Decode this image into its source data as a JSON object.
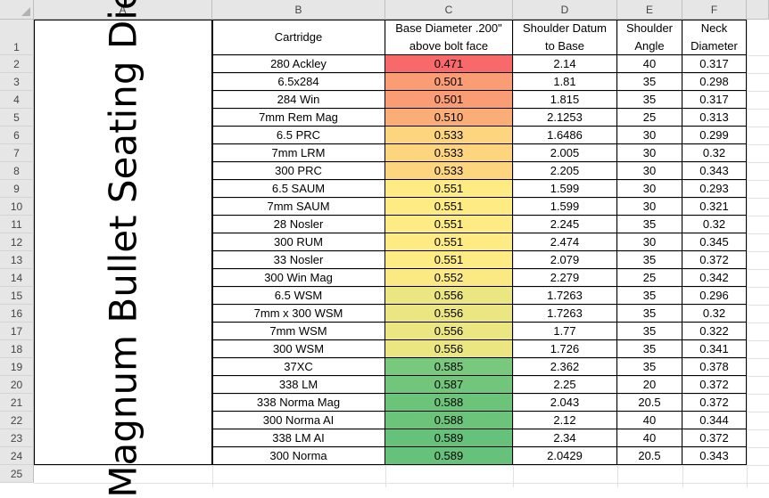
{
  "title": "Magnum Bullet Seating Die",
  "columns": [
    "A",
    "B",
    "C",
    "D",
    "E",
    "F"
  ],
  "row_numbers": [
    "1",
    "2",
    "3",
    "4",
    "5",
    "6",
    "7",
    "8",
    "9",
    "10",
    "11",
    "12",
    "13",
    "14",
    "15",
    "16",
    "17",
    "18",
    "19",
    "20",
    "21",
    "22",
    "23",
    "24",
    "25"
  ],
  "headers": {
    "cartridge": "Cartridge",
    "base_diameter": [
      "Base Diameter .200\"",
      "above bolt face"
    ],
    "shoulder_datum": [
      "Shoulder Datum",
      "to Base"
    ],
    "shoulder_angle": [
      "Shoulder",
      "Angle"
    ],
    "neck_diameter": [
      "Neck",
      "Diameter"
    ]
  },
  "rows": [
    {
      "cartridge": "280 Ackley",
      "base": "0.471",
      "datum": "2.14",
      "angle": "40",
      "neck": "0.317",
      "color": "#f8696b"
    },
    {
      "cartridge": "6.5x284",
      "base": "0.501",
      "datum": "1.81",
      "angle": "35",
      "neck": "0.298",
      "color": "#fa9d75"
    },
    {
      "cartridge": "284 Win",
      "base": "0.501",
      "datum": "1.815",
      "angle": "35",
      "neck": "0.317",
      "color": "#fa9d75"
    },
    {
      "cartridge": "7mm Rem Mag",
      "base": "0.510",
      "datum": "2.1253",
      "angle": "25",
      "neck": "0.313",
      "color": "#fbad78"
    },
    {
      "cartridge": "6.5 PRC",
      "base": "0.533",
      "datum": "1.6486",
      "angle": "30",
      "neck": "0.299",
      "color": "#fdd57f"
    },
    {
      "cartridge": "7mm LRM",
      "base": "0.533",
      "datum": "2.005",
      "angle": "30",
      "neck": "0.32",
      "color": "#fdd57f"
    },
    {
      "cartridge": "300 PRC",
      "base": "0.533",
      "datum": "2.205",
      "angle": "30",
      "neck": "0.343",
      "color": "#fdd57f"
    },
    {
      "cartridge": "6.5 SAUM",
      "base": "0.551",
      "datum": "1.599",
      "angle": "30",
      "neck": "0.293",
      "color": "#ffeb84"
    },
    {
      "cartridge": "7mm SAUM",
      "base": "0.551",
      "datum": "1.599",
      "angle": "30",
      "neck": "0.321",
      "color": "#ffeb84"
    },
    {
      "cartridge": "28 Nosler",
      "base": "0.551",
      "datum": "2.245",
      "angle": "35",
      "neck": "0.32",
      "color": "#ffeb84"
    },
    {
      "cartridge": "300 RUM",
      "base": "0.551",
      "datum": "2.474",
      "angle": "30",
      "neck": "0.345",
      "color": "#ffeb84"
    },
    {
      "cartridge": "33 Nosler",
      "base": "0.551",
      "datum": "2.079",
      "angle": "35",
      "neck": "0.372",
      "color": "#ffeb84"
    },
    {
      "cartridge": "300 Win Mag",
      "base": "0.552",
      "datum": "2.279",
      "angle": "25",
      "neck": "0.342",
      "color": "#fbea84"
    },
    {
      "cartridge": "6.5 WSM",
      "base": "0.556",
      "datum": "1.7263",
      "angle": "35",
      "neck": "0.296",
      "color": "#ebe582"
    },
    {
      "cartridge": "7mm x 300 WSM",
      "base": "0.556",
      "datum": "1.7263",
      "angle": "35",
      "neck": "0.32",
      "color": "#ebe582"
    },
    {
      "cartridge": "7mm WSM",
      "base": "0.556",
      "datum": "1.77",
      "angle": "35",
      "neck": "0.322",
      "color": "#ebe582"
    },
    {
      "cartridge": "300 WSM",
      "base": "0.556",
      "datum": "1.726",
      "angle": "35",
      "neck": "0.341",
      "color": "#ebe582"
    },
    {
      "cartridge": "37XC",
      "base": "0.585",
      "datum": "2.362",
      "angle": "35",
      "neck": "0.378",
      "color": "#78c87d"
    },
    {
      "cartridge": "338 LM",
      "base": "0.587",
      "datum": "2.25",
      "angle": "20",
      "neck": "0.372",
      "color": "#71c67c"
    },
    {
      "cartridge": "338 Norma Mag",
      "base": "0.588",
      "datum": "2.043",
      "angle": "20.5",
      "neck": "0.372",
      "color": "#6cc47b"
    },
    {
      "cartridge": "300 Norma AI",
      "base": "0.588",
      "datum": "2.12",
      "angle": "40",
      "neck": "0.344",
      "color": "#6cc47b"
    },
    {
      "cartridge": "338 LM AI",
      "base": "0.589",
      "datum": "2.34",
      "angle": "40",
      "neck": "0.372",
      "color": "#66c27a"
    },
    {
      "cartridge": "300 Norma",
      "base": "0.589",
      "datum": "2.0429",
      "angle": "20.5",
      "neck": "0.343",
      "color": "#66c27a"
    }
  ]
}
